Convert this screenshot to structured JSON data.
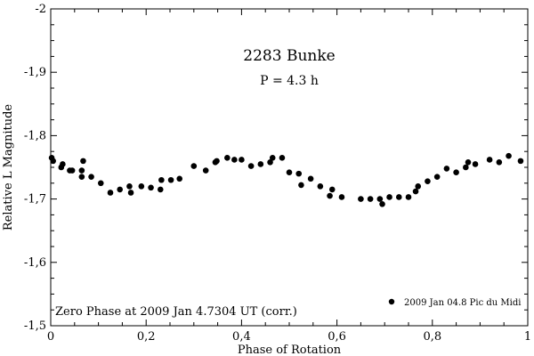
{
  "chart_data": {
    "type": "scatter",
    "title": "2283 Bunke",
    "subtitle": "P = 4.3 h",
    "xlabel": "Phase of Rotation",
    "ylabel": "Relative L Magnitude",
    "xlim": [
      0,
      1
    ],
    "ylim": [
      -2.0,
      -1.5
    ],
    "y_inverted_axis": true,
    "x_ticks": [
      0,
      0.2,
      0.4,
      0.6,
      0.8,
      1
    ],
    "x_tick_labels": [
      "0",
      "0,2",
      "0,4",
      "0,6",
      "0,8",
      "1"
    ],
    "y_ticks": [
      -2.0,
      -1.9,
      -1.8,
      -1.7,
      -1.6,
      -1.5
    ],
    "y_tick_labels": [
      "-2",
      "-1,9",
      "-1,8",
      "-1,7",
      "-1,6",
      "-1,5"
    ],
    "annotation": "Zero Phase at  2009 Jan 4.7304 UT (corr.)",
    "legend_position": "bottom-right",
    "grid": false,
    "marker_color": "#000000",
    "series": [
      {
        "name": "2009 Jan 04.8 Pic du Midi",
        "x": [
          0.002,
          0.005,
          0.022,
          0.025,
          0.04,
          0.045,
          0.065,
          0.065,
          0.068,
          0.085,
          0.105,
          0.125,
          0.145,
          0.165,
          0.168,
          0.19,
          0.21,
          0.23,
          0.232,
          0.252,
          0.27,
          0.3,
          0.325,
          0.345,
          0.348,
          0.37,
          0.385,
          0.4,
          0.42,
          0.44,
          0.46,
          0.465,
          0.485,
          0.5,
          0.52,
          0.525,
          0.545,
          0.565,
          0.585,
          0.59,
          0.61,
          0.65,
          0.67,
          0.69,
          0.695,
          0.71,
          0.73,
          0.75,
          0.765,
          0.77,
          0.79,
          0.81,
          0.83,
          0.85,
          0.87,
          0.875,
          0.89,
          0.92,
          0.94,
          0.96,
          0.985
        ],
        "y": [
          -1.765,
          -1.76,
          -1.75,
          -1.755,
          -1.745,
          -1.745,
          -1.745,
          -1.735,
          -1.76,
          -1.735,
          -1.725,
          -1.71,
          -1.715,
          -1.72,
          -1.71,
          -1.72,
          -1.718,
          -1.715,
          -1.73,
          -1.73,
          -1.732,
          -1.752,
          -1.745,
          -1.758,
          -1.76,
          -1.765,
          -1.762,
          -1.762,
          -1.752,
          -1.755,
          -1.758,
          -1.765,
          -1.765,
          -1.742,
          -1.74,
          -1.722,
          -1.732,
          -1.72,
          -1.705,
          -1.715,
          -1.703,
          -1.7,
          -1.7,
          -1.7,
          -1.692,
          -1.703,
          -1.703,
          -1.703,
          -1.712,
          -1.72,
          -1.728,
          -1.735,
          -1.748,
          -1.742,
          -1.75,
          -1.758,
          -1.755,
          -1.762,
          -1.758,
          -1.768,
          -1.76
        ]
      }
    ]
  }
}
